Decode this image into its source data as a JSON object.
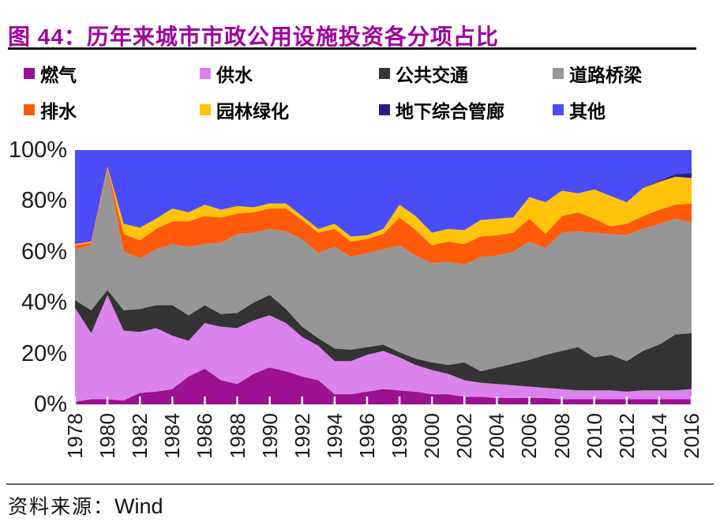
{
  "title": "图 44：历年来城市市政公用设施投资各分项占比",
  "source": {
    "prefix": "资料来源：",
    "name": "Wind"
  },
  "colors": {
    "title": "#A000A0",
    "top_rule": "#111111",
    "bottom_rule": "#666666",
    "axis_text": "#1A1A1A",
    "tick_notch": "#FFFFFF"
  },
  "chart_data": {
    "type": "area",
    "stacked": true,
    "title": "历年来城市市政公用设施投资各分项占比",
    "unit": "%",
    "grid": false,
    "legend_position": "top",
    "ylim": [
      0,
      100
    ],
    "yticks": [
      0,
      20,
      40,
      60,
      80,
      100
    ],
    "ytick_labels": [
      "0%",
      "20%",
      "40%",
      "60%",
      "80%",
      "100%"
    ],
    "x": [
      1978,
      1979,
      1980,
      1981,
      1982,
      1983,
      1984,
      1985,
      1986,
      1987,
      1988,
      1989,
      1990,
      1991,
      1992,
      1993,
      1994,
      1995,
      1996,
      1997,
      1998,
      1999,
      2000,
      2001,
      2002,
      2003,
      2004,
      2005,
      2006,
      2007,
      2008,
      2009,
      2010,
      2011,
      2012,
      2013,
      2014,
      2015,
      2016
    ],
    "xtick_step": 2,
    "series": [
      {
        "name": "燃气",
        "color": "#9B1191",
        "values": [
          1,
          2,
          2,
          1.5,
          4.5,
          5,
          6,
          11,
          14,
          9.5,
          8,
          12,
          14.5,
          13,
          11,
          9.5,
          4,
          4,
          5,
          6,
          5.5,
          5,
          4,
          4,
          3,
          3,
          2.5,
          2.5,
          2.5,
          2.5,
          2,
          2,
          2,
          2,
          2,
          2,
          2,
          2,
          2
        ]
      },
      {
        "name": "供水",
        "color": "#DC82ED",
        "values": [
          37,
          26,
          41,
          27.5,
          24,
          25,
          21,
          14,
          18,
          21,
          22,
          21,
          20.5,
          19,
          15.5,
          13.5,
          13,
          13,
          14.5,
          15,
          13,
          10.5,
          9.5,
          8,
          6.5,
          5.5,
          5.5,
          5,
          4.5,
          4,
          4,
          3.5,
          3.5,
          3.5,
          3,
          3.5,
          3.5,
          3.5,
          4
        ]
      },
      {
        "name": "公共交通",
        "color": "#333333",
        "values": [
          3,
          9,
          2,
          8,
          9,
          9,
          12,
          10,
          7,
          5,
          6,
          7,
          8,
          5.5,
          4,
          3,
          5,
          4.5,
          3,
          2.5,
          2,
          2.5,
          3,
          3.5,
          7,
          4.5,
          6.5,
          8.5,
          10.5,
          13,
          15,
          17,
          13,
          14,
          12,
          15.5,
          18,
          22,
          22
        ]
      },
      {
        "name": "道路桥梁",
        "color": "#969696",
        "values": [
          20,
          25.5,
          47,
          23,
          20,
          22,
          24,
          27,
          24,
          28,
          31,
          27.5,
          26,
          30.5,
          34.5,
          33.5,
          40,
          36.5,
          37,
          37.5,
          42,
          40.5,
          39,
          40.5,
          38.5,
          45,
          44,
          44,
          46.5,
          42,
          46.5,
          45.5,
          49,
          47.5,
          49.5,
          48,
          47.5,
          45.5,
          43.5
        ]
      },
      {
        "name": "排水",
        "color": "#FF5A0A",
        "values": [
          1.5,
          1,
          1,
          7,
          7,
          8,
          9,
          10,
          11,
          10,
          8,
          8,
          8,
          9,
          7.5,
          8,
          7,
          6,
          5.5,
          6,
          11,
          10,
          7,
          8,
          8,
          8,
          8,
          7.5,
          9,
          5.5,
          6.5,
          7.5,
          5.5,
          3,
          4.5,
          5,
          5.5,
          5.5,
          7.5
        ]
      },
      {
        "name": "园林绿化",
        "color": "#FFC40A",
        "values": [
          0.5,
          0.5,
          0.5,
          4,
          5,
          4,
          5,
          3.5,
          4.5,
          3,
          3,
          2,
          2,
          2,
          1.5,
          1.5,
          2,
          2,
          1.5,
          2,
          5,
          5.5,
          5,
          5,
          5.5,
          6.5,
          6.5,
          6,
          8.5,
          12.5,
          10,
          7.5,
          11.5,
          12,
          8.5,
          11,
          11,
          11,
          10
        ]
      },
      {
        "name": "地下综合管廊",
        "color": "#251E87",
        "values": [
          0,
          0,
          0,
          0,
          0,
          0,
          0,
          0,
          0,
          0,
          0,
          0,
          0,
          0,
          0,
          0,
          0,
          0,
          0,
          0,
          0,
          0,
          0,
          0,
          0,
          0,
          0,
          0,
          0,
          0,
          0,
          0,
          0,
          0,
          0,
          0,
          0.5,
          1,
          2
        ]
      },
      {
        "name": "其他",
        "color": "#4A4DF7",
        "values": [
          37,
          36,
          6.5,
          29,
          30.5,
          27,
          23,
          24.5,
          21.5,
          23.5,
          22,
          22.5,
          21,
          21,
          26,
          31,
          29,
          34,
          33.5,
          31,
          21.5,
          26,
          32.5,
          31,
          31.5,
          27.5,
          27,
          26.5,
          18.5,
          20.5,
          16,
          17,
          15.5,
          18,
          20.5,
          15,
          12,
          9.5,
          9
        ]
      }
    ]
  }
}
